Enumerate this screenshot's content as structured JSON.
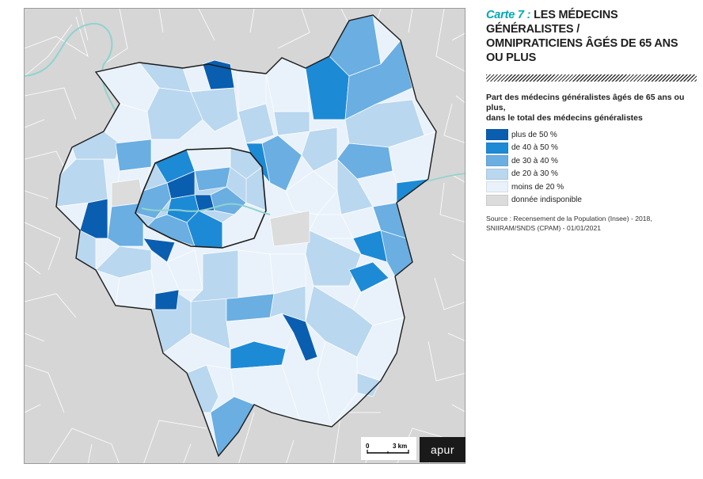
{
  "title": {
    "prefix": "Carte 7 :",
    "line1": "LES MÉDECINS GÉNÉRALISTES /",
    "line2": "OMNIPRATICIENS ÂGÉS DE 65 ANS",
    "line3": "OU PLUS"
  },
  "legend": {
    "title_line1": "Part des médecins généralistes âgés de 65 ans ou plus,",
    "title_line2": "dans le total des médecins généralistes",
    "items": [
      {
        "label": "plus de 50 %",
        "color": "#0a5eb0"
      },
      {
        "label": "de 40 à 50 %",
        "color": "#1d8ad6"
      },
      {
        "label": "de 30 à 40 %",
        "color": "#6aaee2"
      },
      {
        "label": "de 20 à 30 %",
        "color": "#b9d7ef"
      },
      {
        "label": "moins de 20 %",
        "color": "#e9f2fa"
      },
      {
        "label": "donnée indisponible",
        "color": "#dcdcdc"
      }
    ]
  },
  "source": {
    "line1": "Source : Recensement de la Population (Insee) - 2018,",
    "line2": "SNIIRAM/SNDS (CPAM) - 01/01/2021"
  },
  "scale": {
    "zero": "0",
    "distance": "3 km"
  },
  "logo": "apur",
  "colors": {
    "outside": "#d6d6d6",
    "river": "#8fd3cf",
    "paris_border": "#1a1a1a"
  }
}
